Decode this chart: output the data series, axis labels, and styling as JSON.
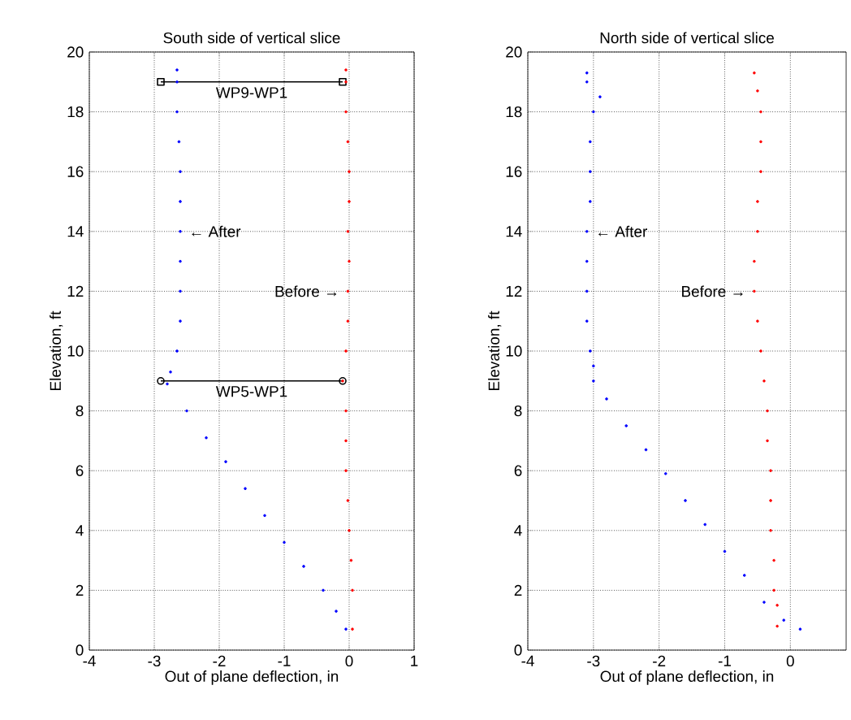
{
  "chart_data": [
    {
      "type": "scatter",
      "title": "South side of vertical slice",
      "xlabel": "Out of plane deflection, in",
      "ylabel": "Elevation, ft",
      "xlim": [
        -4,
        1
      ],
      "xticks": [
        -4,
        -3,
        -2,
        -1,
        0,
        1
      ],
      "ylim": [
        0,
        20
      ],
      "yticks": [
        0,
        2,
        4,
        6,
        8,
        10,
        12,
        14,
        16,
        18,
        20
      ],
      "grid": true,
      "marker": "circle",
      "series": [
        {
          "type": "line",
          "name": "WP9-WP1",
          "color": "#000000",
          "marker": "square",
          "x": [
            -2.9,
            -0.1
          ],
          "values": [
            19,
            19
          ]
        },
        {
          "type": "line",
          "name": "WP5-WP1",
          "color": "#000000",
          "marker": "circle",
          "x": [
            -2.9,
            -0.1
          ],
          "values": [
            9,
            9
          ]
        },
        {
          "color": "#0000ff",
          "x": [
            -0.05,
            -0.2,
            -0.4,
            -0.7,
            -1.0,
            -1.3,
            -1.6,
            -1.9,
            -2.2,
            -2.5,
            -2.8,
            -2.75,
            -2.65,
            -2.6,
            -2.6,
            -2.6,
            -2.6,
            -2.6,
            -2.6,
            -2.62,
            -2.65,
            -2.65,
            -2.65
          ],
          "values": [
            0.7,
            1.3,
            2,
            2.8,
            3.6,
            4.5,
            5.4,
            6.3,
            7.1,
            8,
            8.9,
            9.3,
            10,
            11,
            12,
            13,
            14,
            15,
            16,
            17,
            18,
            19,
            19.4
          ]
        },
        {
          "color": "#ff0000",
          "x": [
            0.05,
            0.05,
            0.03,
            0,
            -0.02,
            -0.05,
            -0.05,
            -0.05,
            -0.1,
            -0.05,
            -0.02,
            -0.02,
            0,
            -0.02,
            0,
            0,
            -0.02,
            -0.05,
            -0.05,
            -0.05
          ],
          "values": [
            0.7,
            2,
            3,
            4,
            5,
            6,
            7,
            8,
            9,
            10,
            11,
            12,
            13,
            14,
            15,
            16,
            17,
            18,
            19,
            19.4
          ]
        }
      ],
      "annotations": [
        {
          "text": "← After",
          "x": -2.6,
          "y": 14
        },
        {
          "text": "Before →",
          "x": -0.02,
          "y": 12
        }
      ]
    },
    {
      "type": "scatter",
      "title": "North side of vertical slice",
      "xlabel": "Out of plane deflection, in",
      "ylabel": "Elevation, ft",
      "xlim": [
        -4,
        0.85
      ],
      "xticks": [
        -4,
        -3,
        -2,
        -1,
        0
      ],
      "ylim": [
        0,
        20
      ],
      "yticks": [
        0,
        2,
        4,
        6,
        8,
        10,
        12,
        14,
        16,
        18,
        20
      ],
      "grid": true,
      "marker": "circle",
      "series": [
        {
          "color": "#0000ff",
          "x": [
            0.15,
            -0.1,
            -0.4,
            -0.7,
            -1.0,
            -1.3,
            -1.6,
            -1.9,
            -2.2,
            -2.5,
            -2.8,
            -3.0,
            -3.0,
            -3.05,
            -3.1,
            -3.1,
            -3.1,
            -3.1,
            -3.05,
            -3.05,
            -3.05,
            -3.0,
            -2.9,
            -3.1,
            -3.1
          ],
          "values": [
            0.7,
            1,
            1.6,
            2.5,
            3.3,
            4.2,
            5,
            5.9,
            6.7,
            7.5,
            8.4,
            9,
            9.5,
            10,
            11,
            12,
            13,
            14,
            15,
            16,
            17,
            18,
            18.5,
            19,
            19.3
          ]
        },
        {
          "color": "#ff0000",
          "x": [
            -0.2,
            -0.2,
            -0.25,
            -0.25,
            -0.3,
            -0.3,
            -0.3,
            -0.35,
            -0.35,
            -0.4,
            -0.45,
            -0.5,
            -0.55,
            -0.55,
            -0.5,
            -0.5,
            -0.45,
            -0.45,
            -0.45,
            -0.5,
            -0.55
          ],
          "values": [
            0.8,
            1.5,
            2,
            3,
            4,
            5,
            6,
            7,
            8,
            9,
            10,
            11,
            12,
            13,
            14,
            15,
            16,
            17,
            18,
            18.7,
            19.3
          ]
        }
      ],
      "annotations": [
        {
          "text": "← After",
          "x": -3.1,
          "y": 14
        },
        {
          "text": "Before →",
          "x": -0.55,
          "y": 12
        }
      ]
    }
  ]
}
